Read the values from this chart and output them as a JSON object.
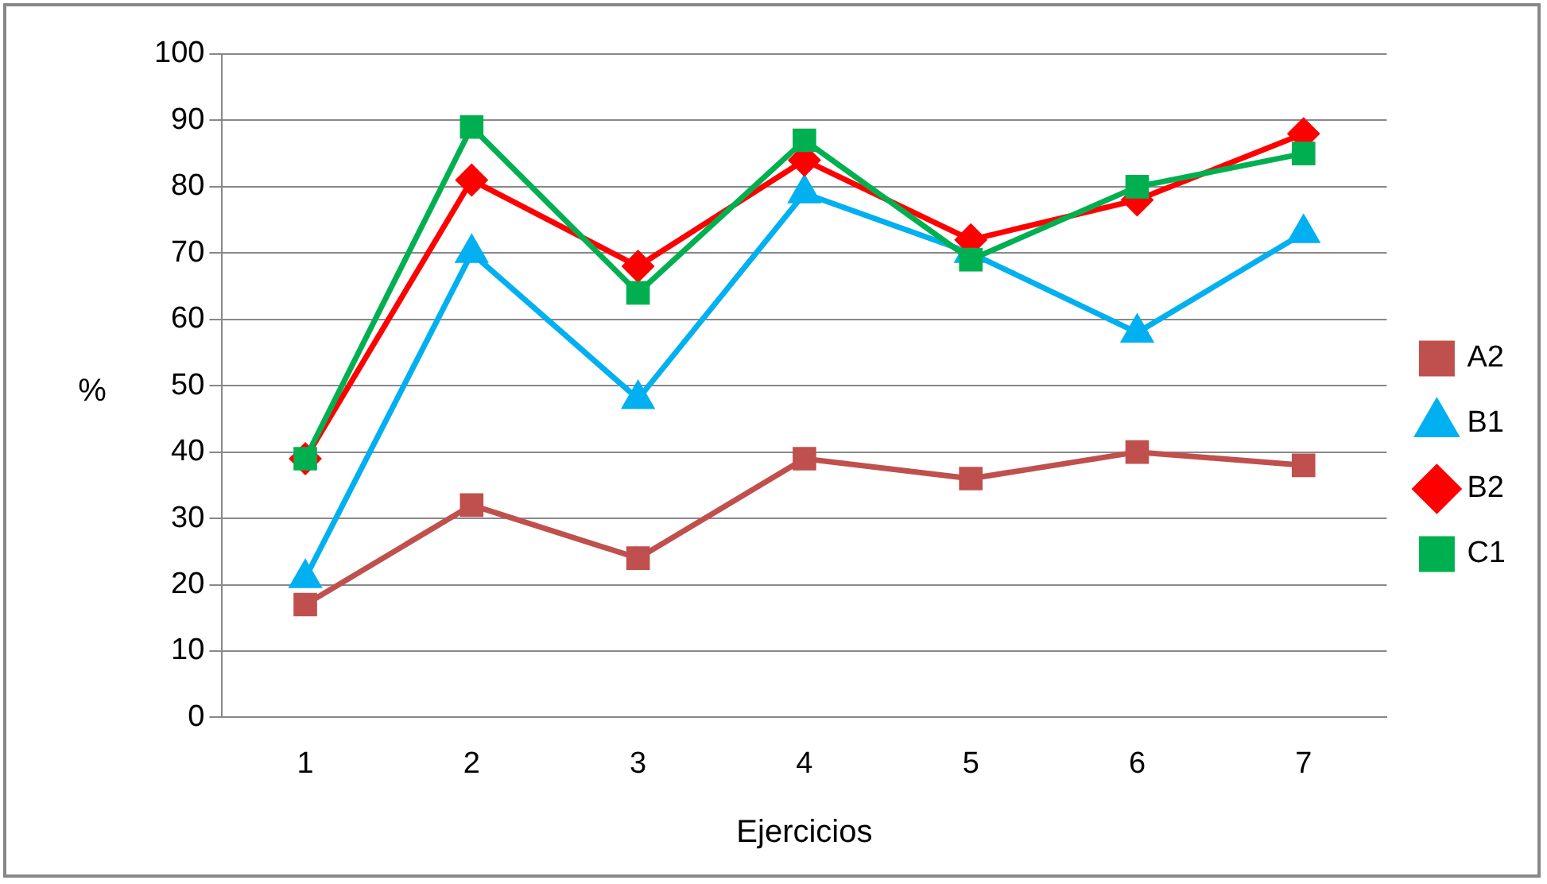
{
  "chart_data": {
    "type": "line",
    "xlabel": "Ejercicios",
    "ylabel": "%",
    "categories": [
      "1",
      "2",
      "3",
      "4",
      "5",
      "6",
      "7"
    ],
    "series": [
      {
        "name": "A2",
        "color": "#c0504d",
        "marker": "square",
        "values": [
          17,
          32,
          24,
          39,
          36,
          40,
          38
        ]
      },
      {
        "name": "B1",
        "color": "#00b0f0",
        "marker": "triangle",
        "values": [
          21,
          70,
          48,
          79,
          70,
          58,
          73
        ]
      },
      {
        "name": "B2",
        "color": "#ff0000",
        "marker": "diamond",
        "values": [
          39,
          81,
          68,
          84,
          72,
          78,
          88
        ]
      },
      {
        "name": "C1",
        "color": "#00b050",
        "marker": "square",
        "values": [
          39,
          89,
          64,
          87,
          69,
          80,
          85
        ]
      }
    ],
    "ylim": [
      0,
      100
    ],
    "yticks": [
      0,
      10,
      20,
      30,
      40,
      50,
      60,
      70,
      80,
      90,
      100
    ],
    "grid": "y",
    "legend": "right",
    "line_style": "solid"
  }
}
